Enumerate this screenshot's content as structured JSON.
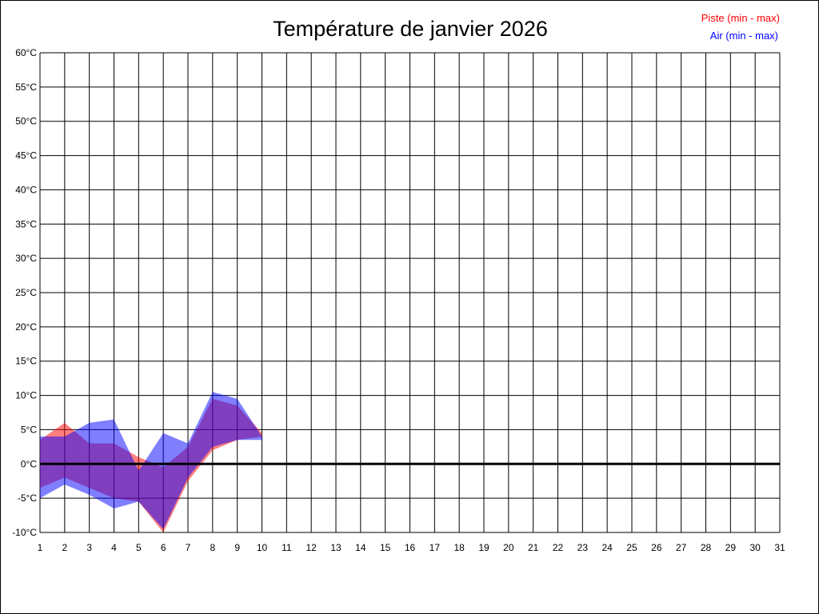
{
  "chart_data": {
    "type": "area",
    "title": "Température de janvier 2026",
    "x": [
      1,
      2,
      3,
      4,
      5,
      6,
      7,
      8,
      9,
      10,
      11,
      12,
      13,
      14,
      15,
      16,
      17,
      18,
      19,
      20,
      21,
      22,
      23,
      24,
      25,
      26,
      27,
      28,
      29,
      30,
      31
    ],
    "x_ticks": [
      "1",
      "2",
      "3",
      "4",
      "5",
      "6",
      "7",
      "8",
      "9",
      "10",
      "11",
      "12",
      "13",
      "14",
      "15",
      "16",
      "17",
      "18",
      "19",
      "20",
      "21",
      "22",
      "23",
      "24",
      "25",
      "26",
      "27",
      "28",
      "29",
      "30",
      "31"
    ],
    "y_ticks": [
      "60°C",
      "55°C",
      "50°C",
      "45°C",
      "40°C",
      "35°C",
      "30°C",
      "25°C",
      "20°C",
      "15°C",
      "10°C",
      "5°C",
      "0°C",
      "-5°C",
      "-10°C"
    ],
    "y_tick_values": [
      60,
      55,
      50,
      45,
      40,
      35,
      30,
      25,
      20,
      15,
      10,
      5,
      0,
      -5,
      -10
    ],
    "ylim": [
      -10,
      60
    ],
    "xlim": [
      1,
      31
    ],
    "grid": true,
    "zero_line": true,
    "legend_position": "top-right",
    "series": [
      {
        "name": "Piste (min - max)",
        "color": "#ff0000",
        "fill": "rgba(255,0,0,0.5)",
        "days": [
          1,
          2,
          3,
          4,
          5,
          6,
          7,
          8,
          9,
          10
        ],
        "min": [
          -3.5,
          -2,
          -3.5,
          -5,
          -5.5,
          -10,
          -2.5,
          2,
          3.5,
          4
        ],
        "max": [
          3.5,
          6,
          3,
          3,
          1,
          -0.5,
          2.5,
          9.5,
          8.5,
          4.5
        ]
      },
      {
        "name": "Air (min - max)",
        "color": "#0000ff",
        "fill": "rgba(0,0,255,0.5)",
        "days": [
          1,
          2,
          3,
          4,
          5,
          6,
          7,
          8,
          9,
          10
        ],
        "min": [
          -5,
          -3,
          -4.5,
          -6.5,
          -5.5,
          -9.5,
          -2,
          2.5,
          3.5,
          3.5
        ],
        "max": [
          4,
          4,
          6,
          6.5,
          -1,
          4.5,
          3,
          10.5,
          9.5,
          4
        ]
      }
    ]
  }
}
